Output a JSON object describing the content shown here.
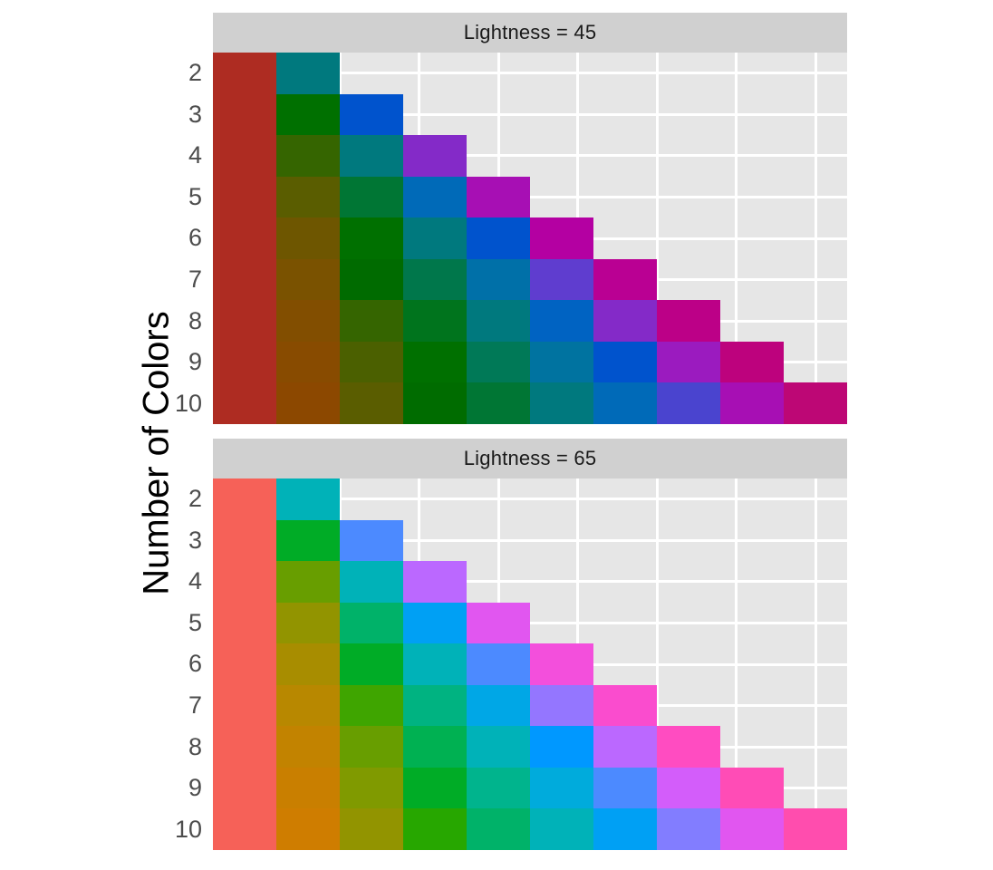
{
  "chart_data": {
    "type": "heatmap",
    "title": "",
    "xlabel": "",
    "ylabel": "Number of Colors",
    "y_tick_labels": [
      "2",
      "3",
      "4",
      "5",
      "6",
      "7",
      "8",
      "9",
      "10"
    ],
    "x_tick_labels_shown": false,
    "x_range": [
      0.5,
      10.5
    ],
    "x_major_breaks": [
      2.5,
      5,
      7.5,
      10
    ],
    "x_minor_breaks": [
      1.25,
      3.75,
      6.25,
      8.75
    ],
    "grid": "on",
    "legend_position": "none",
    "facets": [
      {
        "title": "Lightness = 45",
        "rows": [
          {
            "n": 2,
            "colors": [
              "#BC3F33",
              "#008C91"
            ]
          },
          {
            "n": 3,
            "colors": [
              "#BC3F33",
              "#008400",
              "#0068D6"
            ]
          },
          {
            "n": 4,
            "colors": [
              "#BC3F33",
              "#497A00",
              "#008C91",
              "#973CD2"
            ]
          },
          {
            "n": 5,
            "colors": [
              "#BC3F33",
              "#6F7200",
              "#008A48",
              "#007EC4",
              "#B61AC1"
            ]
          },
          {
            "n": 6,
            "colors": [
              "#BC3F33",
              "#826B00",
              "#008400",
              "#008C91",
              "#0068D6",
              "#C100B1"
            ]
          },
          {
            "n": 7,
            "colors": [
              "#BC3F33",
              "#8D6700",
              "#007F00",
              "#008B60",
              "#0084B7",
              "#7451D8",
              "#C600A4"
            ]
          },
          {
            "n": 8,
            "colors": [
              "#BC3F33",
              "#956300",
              "#497A00",
              "#00882D",
              "#008C91",
              "#0078CD",
              "#973CD2",
              "#C80099"
            ]
          },
          {
            "n": 9,
            "colors": [
              "#BC3F33",
              "#9A6000",
              "#607500",
              "#008400",
              "#008C6C",
              "#0087B0",
              "#0068D6",
              "#AB2ACA",
              "#C90690"
            ]
          },
          {
            "n": 10,
            "colors": [
              "#BC3F33",
              "#9E5D00",
              "#6F7200",
              "#008000",
              "#008A48",
              "#008C91",
              "#007EC4",
              "#5F59D8",
              "#B61AC1",
              "#C90F89"
            ]
          }
        ]
      },
      {
        "title": "Lightness = 65",
        "rows": [
          {
            "n": 2,
            "colors": [
              "#F8766D",
              "#00BFC4"
            ]
          },
          {
            "n": 3,
            "colors": [
              "#F8766D",
              "#00BA38",
              "#619CFF"
            ]
          },
          {
            "n": 4,
            "colors": [
              "#F8766D",
              "#7CAE00",
              "#00BFC4",
              "#C77CFF"
            ]
          },
          {
            "n": 5,
            "colors": [
              "#F8766D",
              "#A3A500",
              "#00BF7D",
              "#00B0F6",
              "#E76BF3"
            ]
          },
          {
            "n": 6,
            "colors": [
              "#F8766D",
              "#B79F00",
              "#00BA38",
              "#00BFC4",
              "#619CFF",
              "#F564E3"
            ]
          },
          {
            "n": 7,
            "colors": [
              "#F8766D",
              "#C49A00",
              "#53B400",
              "#00C094",
              "#00B6EB",
              "#A58AFF",
              "#FB61D7"
            ]
          },
          {
            "n": 8,
            "colors": [
              "#F8766D",
              "#CD9600",
              "#7CAE00",
              "#00BE67",
              "#00BFC4",
              "#00A9FF",
              "#C77CFF",
              "#FF61CC"
            ]
          },
          {
            "n": 9,
            "colors": [
              "#F8766D",
              "#D39200",
              "#93AA00",
              "#00BA38",
              "#00C19F",
              "#00B9E3",
              "#619CFF",
              "#DB72FB",
              "#FF61C3"
            ]
          },
          {
            "n": 10,
            "colors": [
              "#F8766D",
              "#D89000",
              "#A3A500",
              "#39B600",
              "#00BF7D",
              "#00BFC4",
              "#00B0F6",
              "#9590FF",
              "#E76BF3",
              "#FF62BC"
            ]
          }
        ]
      }
    ]
  },
  "theme": {
    "background": "#FFFFFF",
    "panel_background": "#EBEBEB",
    "strip_background": "#D9D9D9",
    "grid_color": "#FFFFFF",
    "strip_text_color": "#1A1A1A",
    "axis_text_color": "#4D4D4D",
    "axis_title_color": "#000000",
    "display_gamma": 1.25
  }
}
